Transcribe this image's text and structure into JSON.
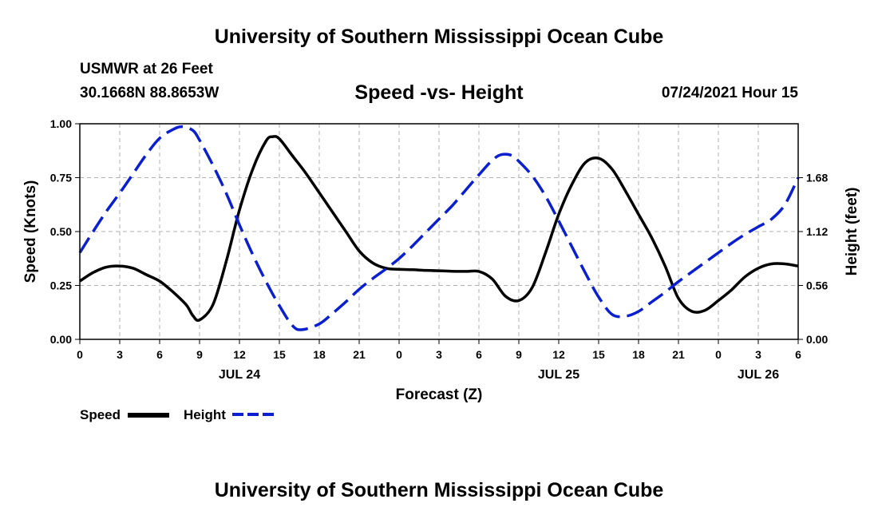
{
  "header": {
    "title_top": "University of Southern Mississippi Ocean Cube",
    "station_name": "USMWR at 26 Feet",
    "coordinates": "30.1668N  88.8653W",
    "date_hour": "07/24/2021 Hour 15",
    "title_bottom": "University of Southern Mississippi Ocean Cube"
  },
  "legend": {
    "speed_label": "Speed",
    "height_label": "Height"
  },
  "colors": {
    "speed": "#000000",
    "height": "#0a1fd0",
    "grid": "#b0b0b0"
  },
  "chart_data": {
    "type": "line",
    "title": "Speed -vs- Height",
    "xlabel": "Forecast (Z)",
    "ylabel": "Speed (Knots)",
    "y2label": "Height (feet)",
    "x_range_hours": [
      0,
      54
    ],
    "ylim": [
      0,
      1.0
    ],
    "y2lim": [
      0,
      2.24
    ],
    "x_ticks": [
      {
        "h": 0,
        "label": "0"
      },
      {
        "h": 3,
        "label": "3"
      },
      {
        "h": 6,
        "label": "6"
      },
      {
        "h": 9,
        "label": "9"
      },
      {
        "h": 12,
        "label": "12"
      },
      {
        "h": 15,
        "label": "15"
      },
      {
        "h": 18,
        "label": "18"
      },
      {
        "h": 21,
        "label": "21"
      },
      {
        "h": 24,
        "label": "0"
      },
      {
        "h": 27,
        "label": "3"
      },
      {
        "h": 30,
        "label": "6"
      },
      {
        "h": 33,
        "label": "9"
      },
      {
        "h": 36,
        "label": "12"
      },
      {
        "h": 39,
        "label": "15"
      },
      {
        "h": 42,
        "label": "18"
      },
      {
        "h": 45,
        "label": "21"
      },
      {
        "h": 48,
        "label": "0"
      },
      {
        "h": 51,
        "label": "3"
      },
      {
        "h": 54,
        "label": "6"
      }
    ],
    "date_labels": [
      {
        "h": 12,
        "label": "JUL 24"
      },
      {
        "h": 36,
        "label": "JUL 25"
      },
      {
        "h": 51,
        "label": "JUL 26"
      }
    ],
    "y_ticks": [
      {
        "v": 0.0,
        "label": "0.00"
      },
      {
        "v": 0.25,
        "label": "0.25"
      },
      {
        "v": 0.5,
        "label": "0.50"
      },
      {
        "v": 0.75,
        "label": "0.75"
      },
      {
        "v": 1.0,
        "label": "1.00"
      }
    ],
    "y2_ticks": [
      {
        "v": 0.0,
        "label": "0.00"
      },
      {
        "v": 0.56,
        "label": "0.56"
      },
      {
        "v": 1.12,
        "label": "1.12"
      },
      {
        "v": 1.68,
        "label": "1.68"
      }
    ],
    "series": [
      {
        "name": "Speed",
        "axis": "left",
        "style": "solid",
        "x": [
          0,
          1,
          2,
          3,
          4,
          5,
          6,
          7,
          8,
          8.5,
          9,
          10,
          11,
          12,
          13,
          14,
          14.5,
          15,
          16,
          17,
          18,
          19,
          20,
          21,
          22,
          23,
          24,
          25,
          26,
          27,
          28,
          29,
          30,
          31,
          32,
          33,
          34,
          35,
          36,
          37,
          38,
          39,
          40,
          41,
          42,
          43,
          44,
          45,
          46,
          47,
          48,
          49,
          50,
          51,
          52,
          53,
          54
        ],
        "values": [
          0.27,
          0.31,
          0.335,
          0.34,
          0.33,
          0.3,
          0.27,
          0.22,
          0.16,
          0.11,
          0.09,
          0.16,
          0.36,
          0.6,
          0.79,
          0.92,
          0.94,
          0.93,
          0.85,
          0.77,
          0.68,
          0.59,
          0.5,
          0.41,
          0.355,
          0.33,
          0.325,
          0.323,
          0.32,
          0.318,
          0.316,
          0.315,
          0.315,
          0.28,
          0.2,
          0.18,
          0.24,
          0.4,
          0.58,
          0.72,
          0.82,
          0.84,
          0.79,
          0.69,
          0.58,
          0.47,
          0.34,
          0.19,
          0.13,
          0.135,
          0.18,
          0.23,
          0.29,
          0.33,
          0.35,
          0.35,
          0.34
        ]
      },
      {
        "name": "Height",
        "axis": "right",
        "style": "dashed",
        "x": [
          0,
          1,
          2,
          3,
          4,
          5,
          6,
          7,
          7.7,
          8.5,
          9,
          10,
          11,
          12,
          13,
          14,
          15,
          16,
          16.7,
          18,
          19,
          20,
          21,
          22,
          23,
          24,
          25,
          26,
          27,
          28,
          29,
          30,
          31,
          31.7,
          32.5,
          33,
          34,
          35,
          36,
          37,
          38,
          39,
          40,
          41,
          42,
          43,
          44,
          45,
          46,
          47,
          48,
          49,
          50,
          51,
          52,
          53,
          54
        ],
        "values": [
          0.9,
          1.12,
          1.33,
          1.52,
          1.72,
          1.92,
          2.09,
          2.18,
          2.21,
          2.17,
          2.07,
          1.81,
          1.52,
          1.19,
          0.88,
          0.6,
          0.35,
          0.14,
          0.1,
          0.16,
          0.27,
          0.39,
          0.52,
          0.63,
          0.73,
          0.84,
          0.97,
          1.11,
          1.25,
          1.39,
          1.55,
          1.71,
          1.86,
          1.92,
          1.91,
          1.85,
          1.7,
          1.49,
          1.23,
          0.96,
          0.69,
          0.44,
          0.26,
          0.24,
          0.29,
          0.39,
          0.49,
          0.6,
          0.7,
          0.8,
          0.9,
          1.0,
          1.09,
          1.17,
          1.25,
          1.4,
          1.68
        ]
      }
    ]
  }
}
